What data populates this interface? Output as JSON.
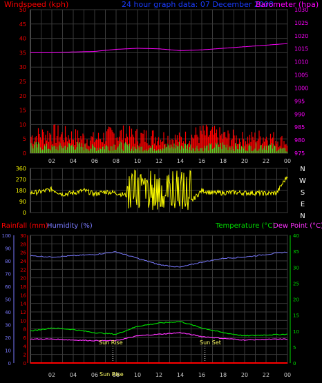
{
  "header": {
    "left_title": "Windspeed (kph)",
    "center_title": "24 hour graph data:  07 December 2008",
    "right_title": "Barometer (hpa)"
  },
  "colors": {
    "wind": "#ff0000",
    "gust": "#ff0000",
    "avg_wind": "#33ff33",
    "baro": "#ff00ff",
    "title": "#1a3cff",
    "direction": "#ffff00",
    "rain": "#ff0000",
    "humidity": "#7a7aff",
    "temperature": "#00dd00",
    "dewpoint": "#ff33ff",
    "axis": "#888888",
    "grid": "#3a3a3a",
    "grid_text_x": "#cccccc"
  },
  "time_ticks": [
    "02",
    "04",
    "06",
    "08",
    "10",
    "12",
    "14",
    "16",
    "18",
    "20",
    "22",
    "00"
  ],
  "compass_labels": [
    "N",
    "W",
    "S",
    "E",
    "N"
  ],
  "bottom_labels": {
    "rain": "Rainfall (mm)",
    "humidity": "Humidity (%)",
    "temperature": "Temperature (°C)",
    "dewpoint": "Dew Point (°C)",
    "sunrise": "Sun Rise",
    "sunset": "Sun Set",
    "sunrise_time": "Sun Rise"
  },
  "chart_data": [
    {
      "type": "line",
      "name": "wind",
      "title": "Windspeed (kph)",
      "ylabel": "Windspeed (kph)",
      "y2label": "Barometer (hpa)",
      "ylim": [
        0,
        50
      ],
      "y2lim": [
        975,
        1030
      ],
      "yticks": [
        0,
        5,
        10,
        15,
        20,
        25,
        30,
        35,
        40,
        45,
        50
      ],
      "y2ticks": [
        975,
        980,
        985,
        990,
        995,
        1000,
        1005,
        1010,
        1015,
        1020,
        1025,
        1030
      ],
      "x": [
        0,
        2,
        4,
        6,
        8,
        10,
        12,
        14,
        16,
        18,
        20,
        22,
        24
      ],
      "series": [
        {
          "name": "Gust",
          "values": [
            6,
            7,
            6,
            5,
            7,
            6,
            6,
            5,
            7,
            6,
            5,
            6,
            4
          ]
        },
        {
          "name": "Average",
          "values": [
            3,
            2,
            3,
            2,
            3,
            2,
            2,
            3,
            2,
            3,
            2,
            3,
            1
          ]
        },
        {
          "name": "Barometer",
          "values": [
            1013.5,
            1013.5,
            1013.8,
            1014,
            1014.8,
            1015.2,
            1015,
            1014.3,
            1014.6,
            1015.2,
            1015.8,
            1016.4,
            1017
          ]
        }
      ]
    },
    {
      "type": "line",
      "name": "direction",
      "ylim": [
        0,
        360
      ],
      "yticks": [
        0,
        90,
        180,
        270,
        360
      ],
      "x": [
        0,
        1,
        2,
        3,
        4,
        5,
        6,
        7,
        8,
        9,
        10,
        11,
        12,
        13,
        14,
        15,
        16,
        17,
        18,
        19,
        20,
        21,
        22,
        23,
        24
      ],
      "series": [
        {
          "name": "Direction",
          "values": [
            160,
            170,
            190,
            150,
            160,
            180,
            150,
            170,
            160,
            140,
            200,
            120,
            300,
            60,
            320,
            90,
            180,
            160,
            160,
            165,
            160,
            160,
            155,
            160,
            300
          ]
        }
      ]
    },
    {
      "type": "line",
      "name": "temp",
      "ylim_rain": [
        0,
        30
      ],
      "yticks_rain": [
        0,
        2,
        4,
        6,
        8,
        10,
        12,
        14,
        16,
        18,
        20,
        22,
        24,
        26,
        28,
        30
      ],
      "ylim_hum": [
        0,
        100
      ],
      "yticks_hum": [
        0,
        10,
        20,
        30,
        40,
        50,
        60,
        70,
        80,
        90,
        100
      ],
      "ylim_temp": [
        0,
        40
      ],
      "yticks_temp": [
        0,
        5,
        10,
        15,
        20,
        25,
        30,
        35,
        40
      ],
      "x": [
        0,
        2,
        4,
        6,
        8,
        10,
        12,
        14,
        16,
        18,
        20,
        22,
        24
      ],
      "series": [
        {
          "name": "Humidity",
          "values": [
            84,
            83,
            84,
            85,
            87,
            82,
            77,
            75,
            79,
            82,
            83,
            85,
            87
          ]
        },
        {
          "name": "Temperature",
          "values": [
            10,
            11,
            10.5,
            9.5,
            9,
            11.5,
            12.5,
            13,
            11,
            9.5,
            8.5,
            8.8,
            9
          ]
        },
        {
          "name": "Dew Point",
          "values": [
            7.5,
            7.5,
            7.2,
            7,
            7,
            8.5,
            9,
            9.5,
            8.3,
            7.7,
            7.2,
            7.4,
            7.5
          ]
        },
        {
          "name": "Rainfall",
          "values": [
            0,
            0,
            0,
            0,
            0,
            0,
            0,
            0,
            0,
            0,
            0,
            0,
            0
          ]
        }
      ]
    }
  ]
}
